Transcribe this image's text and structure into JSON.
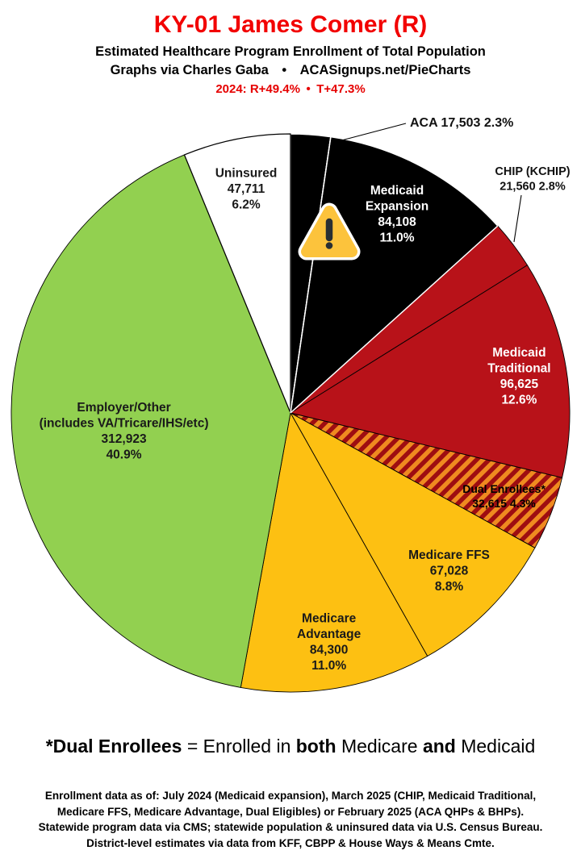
{
  "header": {
    "title": "KY-01 James Comer (R)",
    "title_color": "#f20000",
    "subtitle": "Estimated Healthcare Program Enrollment of Total Population",
    "credit": "Graphs via Charles Gaba  •  ACASignups.net/PieCharts",
    "politics": "2024: R+49.4% • T+47.3%",
    "politics_color": "#e60000"
  },
  "chart_data": {
    "type": "pie",
    "title": "Estimated Healthcare Program Enrollment of Total Population",
    "district": "KY-01",
    "representative": "James Comer (R)",
    "start_angle_deg": 0,
    "direction": "clockwise",
    "hatch_colors": [
      "#ef8a20",
      "#9e0d11"
    ],
    "slices": [
      {
        "id": "aca",
        "label": "ACA",
        "value": 17503,
        "pct": 2.3,
        "color": "#000000",
        "text_color": "#111111",
        "placement": "outside",
        "label_lines": [
          "ACA 17,503 2.3%"
        ]
      },
      {
        "id": "medicaid-expansion",
        "label": "Medicaid Expansion",
        "value": 84108,
        "pct": 11.0,
        "color": "#000000",
        "text_color": "#ffffff",
        "placement": "inside",
        "label_lines": [
          "Medicaid",
          "Expansion",
          "84,108",
          "11.0%"
        ]
      },
      {
        "id": "chip",
        "label": "CHIP (KCHIP)",
        "value": 21560,
        "pct": 2.8,
        "color": "#b81219",
        "text_color": "#111111",
        "placement": "outside",
        "label_lines": [
          "CHIP (KCHIP)",
          "21,560 2.8%"
        ]
      },
      {
        "id": "medicaid-traditional",
        "label": "Medicaid Traditional",
        "value": 96625,
        "pct": 12.6,
        "color": "#b81219",
        "text_color": "#ffffff",
        "placement": "inside",
        "label_lines": [
          "Medicaid",
          "Traditional",
          "96,625",
          "12.6%"
        ]
      },
      {
        "id": "dual-enrollees",
        "label": "Dual Enrollees*",
        "value": 32615,
        "pct": 4.3,
        "color": "hatch",
        "text_color": "#000000",
        "placement": "inside",
        "label_lines": [
          "Dual Enrollees*",
          "32,615 4.3%"
        ]
      },
      {
        "id": "medicare-ffs",
        "label": "Medicare FFS",
        "value": 67028,
        "pct": 8.8,
        "color": "#fdc012",
        "text_color": "#1a1a1a",
        "placement": "inside",
        "label_lines": [
          "Medicare FFS",
          "67,028",
          "8.8%"
        ]
      },
      {
        "id": "medicare-advantage",
        "label": "Medicare Advantage",
        "value": 84300,
        "pct": 11.0,
        "color": "#fdc012",
        "text_color": "#1a1a1a",
        "placement": "inside",
        "label_lines": [
          "Medicare",
          "Advantage",
          "84,300",
          "11.0%"
        ]
      },
      {
        "id": "employer-other",
        "label": "Employer/Other (includes VA/Tricare/IHS/etc)",
        "value": 312923,
        "pct": 40.9,
        "color": "#92d050",
        "text_color": "#1a1a1a",
        "placement": "inside",
        "label_lines": [
          "Employer/Other",
          "(includes VA/Tricare/IHS/etc)",
          "312,923",
          "40.9%"
        ]
      },
      {
        "id": "uninsured",
        "label": "Uninsured",
        "value": 47711,
        "pct": 6.2,
        "color": "#ffffff",
        "text_color": "#1a1a1a",
        "placement": "inside",
        "label_lines": [
          "Uninsured",
          "47,711",
          "6.2%"
        ]
      }
    ],
    "annotations": [
      {
        "type": "icon",
        "name": "warning-icon",
        "glyph": "⚠",
        "colors": {
          "triangle": "#fcc33c",
          "mark": "#292f33",
          "halo": "#ffffff"
        },
        "on_slice": "medicaid-expansion"
      }
    ],
    "legend_position": "none",
    "grid": false
  },
  "footnote_parts": [
    {
      "text": "*Dual Enrollees",
      "bold": true
    },
    {
      "text": " = Enrolled in ",
      "bold": false
    },
    {
      "text": "both",
      "bold": true
    },
    {
      "text": " Medicare ",
      "bold": false
    },
    {
      "text": "and",
      "bold": true
    },
    {
      "text": " Medicaid",
      "bold": false
    }
  ],
  "footer": {
    "lines": [
      "Enrollment data as of: July 2024 (Medicaid expansion), March 2025 (CHIP, Medicaid Traditional,",
      "Medicare FFS, Medicare Advantage, Dual Eligibles) or February 2025 (ACA QHPs & BHPs).",
      "Statewide program data via CMS; statewide population & uninsured data via U.S. Census Bureau.",
      "District-level estimates via data from KFF, CBPP & House Ways & Means Cmte."
    ]
  }
}
